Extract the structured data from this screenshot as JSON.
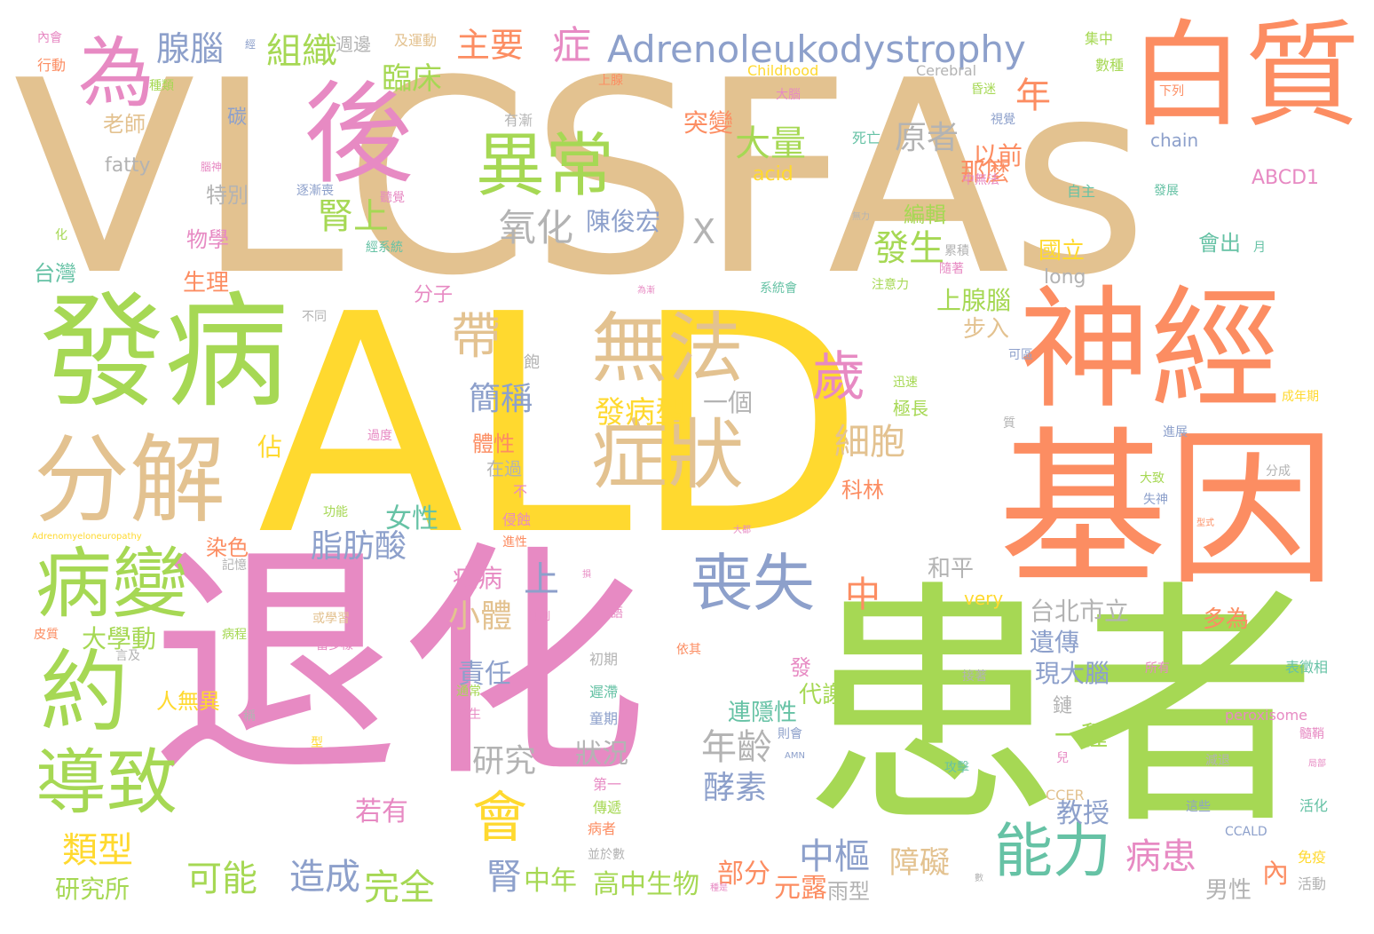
{
  "palette": {
    "tan": "#e3c290",
    "yellow": "#ffd92f",
    "pink": "#e78ac3",
    "green": "#a6d854",
    "orange": "#fc8d62",
    "blue": "#8da0cb",
    "teal": "#66c2a5",
    "gray": "#b3b3b3"
  },
  "words": [
    {
      "text": "VLCSFAs",
      "color": "tan"
    },
    {
      "text": "ALD",
      "color": "yellow"
    },
    {
      "text": "退化",
      "color": "pink"
    },
    {
      "text": "患者",
      "color": "green"
    },
    {
      "text": "基因",
      "color": "orange"
    },
    {
      "text": "神經",
      "color": "orange"
    },
    {
      "text": "白質",
      "color": "orange"
    },
    {
      "text": "發病",
      "color": "green"
    },
    {
      "text": "分解",
      "color": "tan"
    },
    {
      "text": "後",
      "color": "pink"
    },
    {
      "text": "異常",
      "color": "green"
    },
    {
      "text": "無法",
      "color": "tan"
    },
    {
      "text": "症狀",
      "color": "tan"
    },
    {
      "text": "為",
      "color": "pink"
    },
    {
      "text": "病變",
      "color": "green"
    },
    {
      "text": "約",
      "color": "green"
    },
    {
      "text": "導致",
      "color": "green"
    },
    {
      "text": "能力",
      "color": "teal"
    },
    {
      "text": "喪失",
      "color": "blue"
    },
    {
      "text": "會",
      "color": "yellow"
    },
    {
      "text": "歲",
      "color": "pink"
    },
    {
      "text": "帶",
      "color": "tan"
    },
    {
      "text": "Adrenoleukodystrophy",
      "color": "blue"
    },
    {
      "text": "組織",
      "color": "green"
    },
    {
      "text": "腺腦",
      "color": "blue"
    },
    {
      "text": "主要",
      "color": "orange"
    },
    {
      "text": "症",
      "color": "pink"
    },
    {
      "text": "臨床",
      "color": "green"
    },
    {
      "text": "大量",
      "color": "green"
    },
    {
      "text": "原者",
      "color": "gray"
    },
    {
      "text": "年",
      "color": "orange"
    },
    {
      "text": "氧化",
      "color": "gray"
    },
    {
      "text": "腎上",
      "color": "green"
    },
    {
      "text": "陳俊宏",
      "color": "blue"
    },
    {
      "text": "X",
      "color": "gray"
    },
    {
      "text": "發生",
      "color": "green"
    },
    {
      "text": "以前",
      "color": "orange"
    },
    {
      "text": "那麼",
      "color": "orange"
    },
    {
      "text": "突變",
      "color": "orange"
    },
    {
      "text": "細胞",
      "color": "tan"
    },
    {
      "text": "簡稱",
      "color": "blue"
    },
    {
      "text": "發病型",
      "color": "yellow"
    },
    {
      "text": "一個",
      "color": "gray"
    },
    {
      "text": "脂肪酸",
      "color": "blue"
    },
    {
      "text": "女性",
      "color": "teal"
    },
    {
      "text": "小體",
      "color": "tan"
    },
    {
      "text": "上",
      "color": "blue"
    },
    {
      "text": "中",
      "color": "orange"
    },
    {
      "text": "疾病",
      "color": "pink"
    },
    {
      "text": "年齡",
      "color": "gray"
    },
    {
      "text": "研究",
      "color": "gray"
    },
    {
      "text": "狀況",
      "color": "gray"
    },
    {
      "text": "酵素",
      "color": "blue"
    },
    {
      "text": "中樞",
      "color": "blue"
    },
    {
      "text": "障礙",
      "color": "tan"
    },
    {
      "text": "病患",
      "color": "pink"
    },
    {
      "text": "造成",
      "color": "blue"
    },
    {
      "text": "完全",
      "color": "green"
    },
    {
      "text": "可能",
      "color": "green"
    },
    {
      "text": "類型",
      "color": "yellow"
    },
    {
      "text": "腎",
      "color": "blue"
    },
    {
      "text": "中年",
      "color": "green"
    },
    {
      "text": "高中生物",
      "color": "green"
    },
    {
      "text": "部分",
      "color": "orange"
    },
    {
      "text": "元露",
      "color": "orange"
    },
    {
      "text": "雨型",
      "color": "gray"
    },
    {
      "text": "研究所",
      "color": "green"
    },
    {
      "text": "大學動",
      "color": "green"
    },
    {
      "text": "人無異",
      "color": "yellow"
    },
    {
      "text": "責任",
      "color": "blue"
    },
    {
      "text": "若有",
      "color": "pink"
    },
    {
      "text": "教授",
      "color": "blue"
    },
    {
      "text": "一種",
      "color": "green"
    },
    {
      "text": "遺傳",
      "color": "blue"
    },
    {
      "text": "現大腦",
      "color": "blue"
    },
    {
      "text": "多為",
      "color": "orange"
    },
    {
      "text": "台北市立",
      "color": "gray"
    },
    {
      "text": "和平",
      "color": "gray"
    },
    {
      "text": "步入",
      "color": "tan"
    },
    {
      "text": "上腺腦",
      "color": "green"
    },
    {
      "text": "連隱性",
      "color": "teal"
    },
    {
      "text": "代謝",
      "color": "green"
    },
    {
      "text": "男性",
      "color": "gray"
    },
    {
      "text": "內",
      "color": "orange"
    },
    {
      "text": "鏈",
      "color": "gray"
    },
    {
      "text": "國立",
      "color": "yellow"
    },
    {
      "text": "long",
      "color": "gray"
    },
    {
      "text": "會出",
      "color": "teal"
    },
    {
      "text": "編輯",
      "color": "green"
    },
    {
      "text": "chain",
      "color": "blue"
    },
    {
      "text": "ABCD1",
      "color": "pink"
    },
    {
      "text": "fatty",
      "color": "gray"
    },
    {
      "text": "acid",
      "color": "yellow"
    },
    {
      "text": "老師",
      "color": "tan"
    },
    {
      "text": "碳",
      "color": "blue"
    },
    {
      "text": "特別",
      "color": "gray"
    },
    {
      "text": "物學",
      "color": "pink"
    },
    {
      "text": "生理",
      "color": "orange"
    },
    {
      "text": "台灣",
      "color": "teal"
    },
    {
      "text": "分子",
      "color": "pink"
    },
    {
      "text": "佔",
      "color": "yellow"
    },
    {
      "text": "染色",
      "color": "orange"
    },
    {
      "text": "科林",
      "color": "orange"
    },
    {
      "text": "Childhood",
      "color": "yellow"
    },
    {
      "text": "Cerebral",
      "color": "gray"
    },
    {
      "text": "peroxisome",
      "color": "pink"
    },
    {
      "text": "CCALD",
      "color": "blue"
    },
    {
      "text": "CCER",
      "color": "tan"
    },
    {
      "text": "very",
      "color": "yellow"
    },
    {
      "text": "週邊",
      "color": "gray"
    },
    {
      "text": "及運動",
      "color": "tan"
    },
    {
      "text": "集中",
      "color": "green"
    },
    {
      "text": "數種",
      "color": "green"
    },
    {
      "text": "行動",
      "color": "orange"
    },
    {
      "text": "內會",
      "color": "pink"
    },
    {
      "text": "種類",
      "color": "green"
    },
    {
      "text": "上腺",
      "color": "orange"
    },
    {
      "text": "大腦",
      "color": "pink"
    },
    {
      "text": "昏迷",
      "color": "green"
    },
    {
      "text": "下列",
      "color": "orange"
    },
    {
      "text": "視覺",
      "color": "blue"
    },
    {
      "text": "有漸",
      "color": "gray"
    },
    {
      "text": "死亡",
      "color": "teal"
    },
    {
      "text": "中無法",
      "color": "pink"
    },
    {
      "text": "自主",
      "color": "teal"
    },
    {
      "text": "發展",
      "color": "teal"
    },
    {
      "text": "逐漸喪",
      "color": "blue"
    },
    {
      "text": "聽覺",
      "color": "pink"
    },
    {
      "text": "經系統",
      "color": "teal"
    },
    {
      "text": "系統會",
      "color": "teal"
    },
    {
      "text": "累積",
      "color": "gray"
    },
    {
      "text": "隨著",
      "color": "pink"
    },
    {
      "text": "注意力",
      "color": "green"
    },
    {
      "text": "月",
      "color": "teal"
    },
    {
      "text": "不同",
      "color": "gray"
    },
    {
      "text": "飽",
      "color": "gray"
    },
    {
      "text": "可區",
      "color": "blue"
    },
    {
      "text": "迅速",
      "color": "green"
    },
    {
      "text": "極長",
      "color": "green"
    },
    {
      "text": "成年期",
      "color": "yellow"
    },
    {
      "text": "質",
      "color": "gray"
    },
    {
      "text": "進展",
      "color": "blue"
    },
    {
      "text": "分成",
      "color": "gray"
    },
    {
      "text": "大致",
      "color": "green"
    },
    {
      "text": "失神",
      "color": "blue"
    },
    {
      "text": "過度",
      "color": "pink"
    },
    {
      "text": "體性",
      "color": "orange"
    },
    {
      "text": "在過",
      "color": "gray"
    },
    {
      "text": "不",
      "color": "pink"
    },
    {
      "text": "侵蝕",
      "color": "pink"
    },
    {
      "text": "進性",
      "color": "orange"
    },
    {
      "text": "功能",
      "color": "green"
    },
    {
      "text": "記憶",
      "color": "gray"
    },
    {
      "text": "皮質",
      "color": "orange"
    },
    {
      "text": "病程",
      "color": "green"
    },
    {
      "text": "言及",
      "color": "gray"
    },
    {
      "text": "或學習",
      "color": "tan"
    },
    {
      "text": "當多樣",
      "color": "pink"
    },
    {
      "text": "初期",
      "color": "gray"
    },
    {
      "text": "依其",
      "color": "orange"
    },
    {
      "text": "通常",
      "color": "green"
    },
    {
      "text": "產生",
      "color": "pink"
    },
    {
      "text": "遲滯",
      "color": "teal"
    },
    {
      "text": "童期",
      "color": "blue"
    },
    {
      "text": "則會",
      "color": "blue"
    },
    {
      "text": "第一",
      "color": "pink"
    },
    {
      "text": "傳遞",
      "color": "green"
    },
    {
      "text": "病者",
      "color": "orange"
    },
    {
      "text": "並於數",
      "color": "gray"
    },
    {
      "text": "稱",
      "color": "gray"
    },
    {
      "text": "型",
      "color": "yellow"
    },
    {
      "text": "發",
      "color": "pink"
    },
    {
      "text": "接著",
      "color": "gray"
    },
    {
      "text": "攻擊",
      "color": "teal"
    },
    {
      "text": "兒",
      "color": "pink"
    },
    {
      "text": "減退",
      "color": "gray"
    },
    {
      "text": "這些",
      "color": "blue"
    },
    {
      "text": "活化",
      "color": "teal"
    },
    {
      "text": "免疫",
      "color": "yellow"
    },
    {
      "text": "活動",
      "color": "gray"
    },
    {
      "text": "表徵相",
      "color": "teal"
    },
    {
      "text": "髓鞘",
      "color": "pink"
    },
    {
      "text": "所有",
      "color": "pink"
    },
    {
      "text": "化",
      "color": "green"
    },
    {
      "text": "經",
      "color": "blue"
    },
    {
      "text": "腦神",
      "color": "pink"
    },
    {
      "text": "無力",
      "color": "gray"
    },
    {
      "text": "為漸",
      "color": "pink"
    },
    {
      "text": "AMN",
      "color": "blue"
    },
    {
      "text": "Adrenomyeloneuropathy",
      "color": "yellow"
    },
    {
      "text": "種是",
      "color": "pink"
    },
    {
      "text": "大都",
      "color": "pink"
    },
    {
      "text": "抑制",
      "color": "pink"
    },
    {
      "text": "語",
      "color": "pink"
    },
    {
      "text": "損",
      "color": "pink"
    },
    {
      "text": "局部",
      "color": "pink"
    },
    {
      "text": "數",
      "color": "gray"
    },
    {
      "text": "型式",
      "color": "orange"
    }
  ]
}
